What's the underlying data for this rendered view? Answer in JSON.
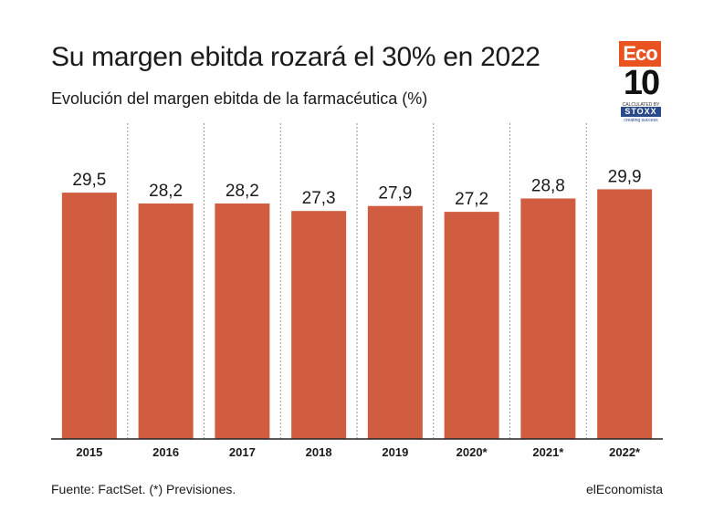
{
  "header": {
    "title": "Su margen ebitda rozará el 30% en 2022",
    "subtitle": "Evolución del margen ebitda de la farmacéutica (%)"
  },
  "logo": {
    "eco": "Eco",
    "ten": "10",
    "line1": "CALCULATED BY",
    "brand": "STOXX",
    "line2": "creating success"
  },
  "colors": {
    "bar": "#d05d40",
    "gridline": "#9a9a9a",
    "axis": "#222222",
    "logo_accent": "#e9531f"
  },
  "chart_data": {
    "type": "bar",
    "categories": [
      "2015",
      "2016",
      "2017",
      "2018",
      "2019",
      "2020*",
      "2021*",
      "2022*"
    ],
    "values": [
      29.5,
      28.2,
      28.2,
      27.3,
      27.9,
      27.2,
      28.8,
      29.9
    ],
    "value_labels": [
      "29,5",
      "28,2",
      "28,2",
      "27,3",
      "27,9",
      "27,2",
      "28,8",
      "29,9"
    ],
    "title": "Su margen ebitda rozará el 30% en 2022",
    "subtitle": "Evolución del margen ebitda de la farmacéutica (%)",
    "xlabel": "",
    "ylabel": "",
    "ylim": [
      0,
      34
    ],
    "grid": "vertical dashed separators"
  },
  "footer": {
    "source": "Fuente: FactSet. (*) Previsiones.",
    "brand": "elEconomista"
  }
}
